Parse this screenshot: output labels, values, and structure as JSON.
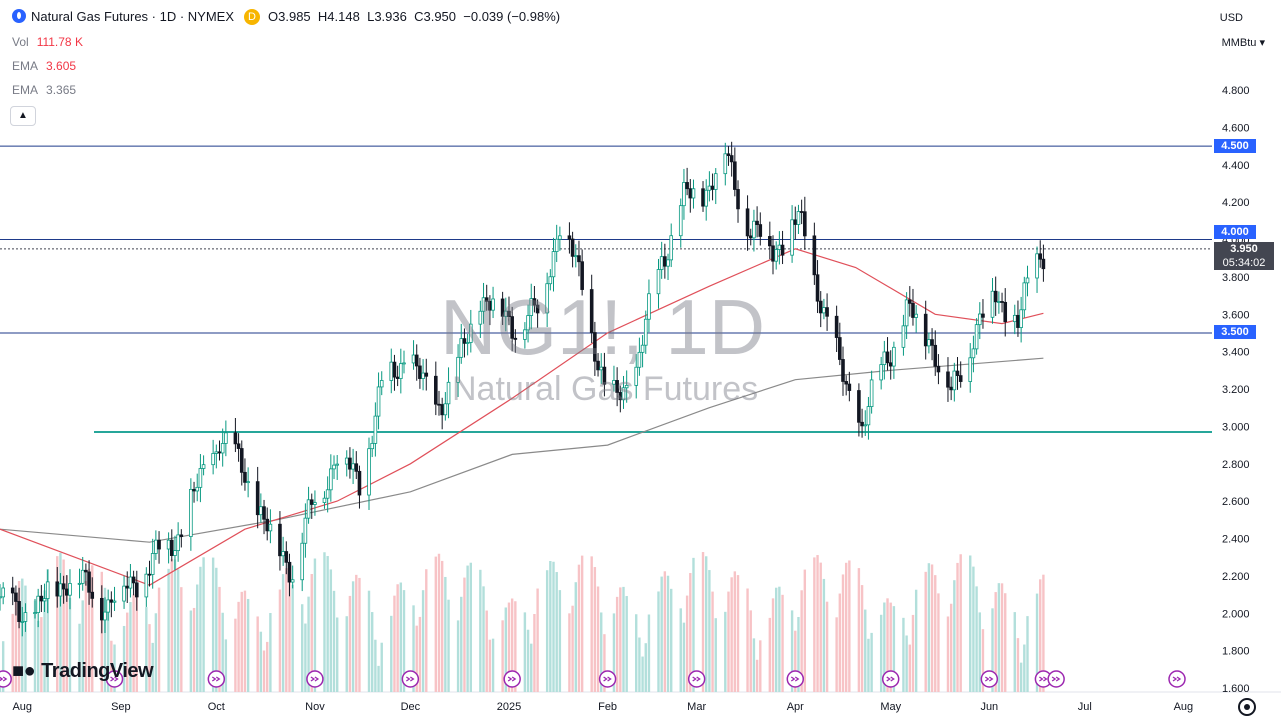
{
  "header": {
    "symbol_title": "Natural Gas Futures · 1D · NYMEX",
    "badge": "D",
    "open_key": "O",
    "open": "3.985",
    "high_key": "H",
    "high": "4.148",
    "low_key": "L",
    "low": "3.936",
    "close_key": "C",
    "close": "3.950",
    "change": "−0.039 (−0.98%)"
  },
  "indicators": [
    {
      "name": "Vol",
      "value": "111.78 K",
      "color": "#f23645"
    },
    {
      "name": "EMA",
      "value": "3.605",
      "color": "#f23645"
    },
    {
      "name": "EMA",
      "value": "3.365",
      "color": "#787b86"
    }
  ],
  "axis_controls": {
    "currency": "USD",
    "unit": "MMBtu"
  },
  "watermark": {
    "symbol": "NG1!, 1D",
    "name": "Natural Gas Futures"
  },
  "branding": {
    "logo_text": "TradingView"
  },
  "level_labels": [
    "4.500",
    "4.000",
    "3.500"
  ],
  "current_price": {
    "price": "3.950",
    "countdown": "05:34:02"
  },
  "colors": {
    "up": "#089981",
    "down": "#131722",
    "ema_fast": "#e0505a",
    "ema_slow": "#8a8a8a",
    "level": "#1e3a8a",
    "support": "#26a69a",
    "vol_up": "#b2dfdb",
    "vol_down": "#f7c3c6"
  },
  "chart_data": {
    "type": "candlestick",
    "title": "Natural Gas Futures · 1D · NYMEX",
    "y_ticks": [
      "4.800",
      "4.600",
      "4.400",
      "4.200",
      "4.000",
      "3.800",
      "3.600",
      "3.400",
      "3.200",
      "3.000",
      "2.800",
      "2.600",
      "2.400",
      "2.200",
      "2.000",
      "1.800",
      "1.600"
    ],
    "ylim": [
      1.6,
      4.9
    ],
    "x_ticks": [
      "Aug",
      "Sep",
      "Oct",
      "Nov",
      "Dec",
      "2025",
      "Feb",
      "Mar",
      "Apr",
      "May",
      "Jun",
      "Jul",
      "Aug"
    ],
    "horizontal_levels": [
      4.5,
      4.0,
      3.5
    ],
    "support_level": 2.97,
    "close_path": [
      {
        "date": "2024-07-25",
        "close": 2.05
      },
      {
        "date": "2024-08-05",
        "close": 2.0
      },
      {
        "date": "2024-08-15",
        "close": 2.2
      },
      {
        "date": "2024-08-28",
        "close": 2.05
      },
      {
        "date": "2024-09-10",
        "close": 2.25
      },
      {
        "date": "2024-09-20",
        "close": 2.45
      },
      {
        "date": "2024-10-02",
        "close": 2.95
      },
      {
        "date": "2024-10-10",
        "close": 2.75
      },
      {
        "date": "2024-10-18",
        "close": 2.4
      },
      {
        "date": "2024-10-25",
        "close": 2.25
      },
      {
        "date": "2024-11-01",
        "close": 2.6
      },
      {
        "date": "2024-11-08",
        "close": 2.85
      },
      {
        "date": "2024-11-15",
        "close": 2.7
      },
      {
        "date": "2024-11-22",
        "close": 3.2
      },
      {
        "date": "2024-11-30",
        "close": 3.4
      },
      {
        "date": "2024-12-08",
        "close": 3.1
      },
      {
        "date": "2024-12-15",
        "close": 3.25
      },
      {
        "date": "2024-12-23",
        "close": 3.7
      },
      {
        "date": "2025-01-02",
        "close": 3.55
      },
      {
        "date": "2025-01-10",
        "close": 3.6
      },
      {
        "date": "2025-01-17",
        "close": 4.1
      },
      {
        "date": "2025-01-25",
        "close": 3.7
      },
      {
        "date": "2025-02-01",
        "close": 3.1
      },
      {
        "date": "2025-02-10",
        "close": 3.3
      },
      {
        "date": "2025-02-18",
        "close": 3.9
      },
      {
        "date": "2025-02-25",
        "close": 4.2
      },
      {
        "date": "2025-03-05",
        "close": 4.3
      },
      {
        "date": "2025-03-10",
        "close": 4.45
      },
      {
        "date": "2025-03-18",
        "close": 4.05
      },
      {
        "date": "2025-03-25",
        "close": 3.95
      },
      {
        "date": "2025-04-02",
        "close": 4.1
      },
      {
        "date": "2025-04-09",
        "close": 3.7
      },
      {
        "date": "2025-04-15",
        "close": 3.3
      },
      {
        "date": "2025-04-22",
        "close": 3.0
      },
      {
        "date": "2025-04-29",
        "close": 3.35
      },
      {
        "date": "2025-05-06",
        "close": 3.6
      },
      {
        "date": "2025-05-13",
        "close": 3.5
      },
      {
        "date": "2025-05-20",
        "close": 3.15
      },
      {
        "date": "2025-05-27",
        "close": 3.5
      },
      {
        "date": "2025-06-03",
        "close": 3.7
      },
      {
        "date": "2025-06-10",
        "close": 3.55
      },
      {
        "date": "2025-06-17",
        "close": 3.95
      },
      {
        "date": "2025-06-18",
        "close": 3.95
      }
    ],
    "ema_fast_path": [
      {
        "date": "2024-07-25",
        "value": 2.45
      },
      {
        "date": "2024-09-10",
        "value": 2.15
      },
      {
        "date": "2024-10-10",
        "value": 2.45
      },
      {
        "date": "2024-11-08",
        "value": 2.6
      },
      {
        "date": "2024-12-01",
        "value": 2.8
      },
      {
        "date": "2025-01-02",
        "value": 3.15
      },
      {
        "date": "2025-02-01",
        "value": 3.5
      },
      {
        "date": "2025-03-05",
        "value": 3.75
      },
      {
        "date": "2025-04-01",
        "value": 3.95
      },
      {
        "date": "2025-04-20",
        "value": 3.85
      },
      {
        "date": "2025-05-15",
        "value": 3.6
      },
      {
        "date": "2025-06-05",
        "value": 3.55
      },
      {
        "date": "2025-06-18",
        "value": 3.605
      }
    ],
    "ema_slow_path": [
      {
        "date": "2024-07-25",
        "value": 2.45
      },
      {
        "date": "2024-09-10",
        "value": 2.38
      },
      {
        "date": "2024-10-20",
        "value": 2.5
      },
      {
        "date": "2024-12-01",
        "value": 2.65
      },
      {
        "date": "2025-01-02",
        "value": 2.85
      },
      {
        "date": "2025-02-01",
        "value": 2.9
      },
      {
        "date": "2025-03-05",
        "value": 3.1
      },
      {
        "date": "2025-04-01",
        "value": 3.25
      },
      {
        "date": "2025-05-01",
        "value": 3.3
      },
      {
        "date": "2025-06-18",
        "value": 3.365
      }
    ]
  }
}
